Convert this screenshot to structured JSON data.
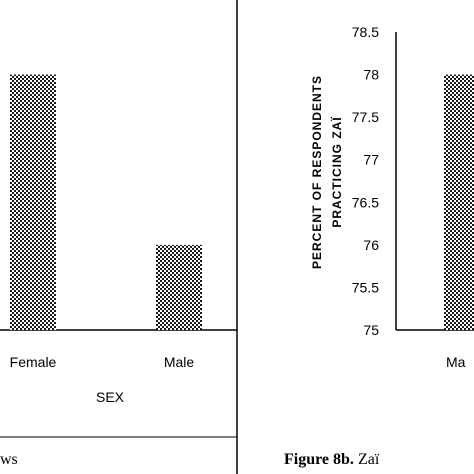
{
  "chart_data": [
    {
      "type": "bar",
      "categories": [
        "Female",
        "Male"
      ],
      "values": [
        78,
        76
      ],
      "ylim": [
        75,
        78.5
      ],
      "xlabel": "SEX",
      "ylabel": "",
      "caption_tail": "ws",
      "color": "#1a1a1a",
      "pattern": "dotted"
    },
    {
      "type": "bar",
      "categories": [
        "Ma"
      ],
      "values": [
        78
      ],
      "ylim": [
        75,
        78.5
      ],
      "yticks": [
        "75",
        "75.5",
        "76",
        "76.5",
        "77",
        "77.5",
        "78",
        "78.5"
      ],
      "ylabel_line1": "PERCENT OF RESPONDENTS",
      "ylabel_line2": "PRACTICING ZAÏ",
      "caption_bold": "Figure 8b.",
      "caption_rest": " Zaï",
      "color": "#1a1a1a",
      "pattern": "dotted"
    }
  ]
}
